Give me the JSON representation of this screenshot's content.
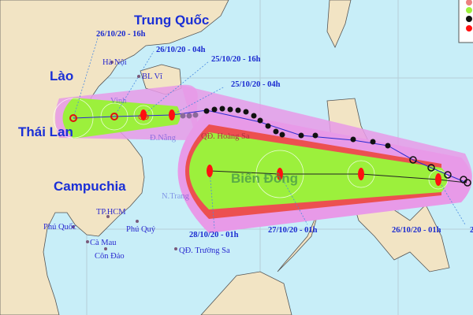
{
  "map": {
    "countries": [
      "Trung Quốc",
      "Lào",
      "Thái Lan",
      "Campuchia"
    ],
    "sea_name": "Biển Đông",
    "places": {
      "ha_noi": "Hà Nội",
      "bl_vi": "BL Vĩ",
      "vinh": "Vinh",
      "da_nang": "Đ.Nẵng",
      "hoang_sa": "QĐ. Hoàng Sa",
      "nha_trang": "N.Trang",
      "tp_hcm": "TP.HCM",
      "phu_quoc": "Phú Quốc",
      "phu_quy": "Phú Quý",
      "ca_mau": "Cà Mau",
      "con_dao": "Côn Đảo",
      "truong_sa": "QĐ. Trường Sa"
    },
    "previous_forecast_times": [
      "26/10/20 - 16h",
      "26/10/20 - 04h",
      "25/10/20 - 16h",
      "25/10/20 - 04h"
    ],
    "current_forecast_times": [
      "28/10/20 - 01h",
      "27/10/20 - 01h",
      "26/10/20 - 01h",
      "2"
    ],
    "colors": {
      "sea": "#c8eef8",
      "land": "#f2e4c4",
      "risk_zone": "#e89ae8",
      "strong_wind_zone": "#ec5050",
      "storm_center_zone": "#9cf03c",
      "storm_icon_forecast": "#ff1010",
      "storm_icon_past": "#111111"
    }
  }
}
